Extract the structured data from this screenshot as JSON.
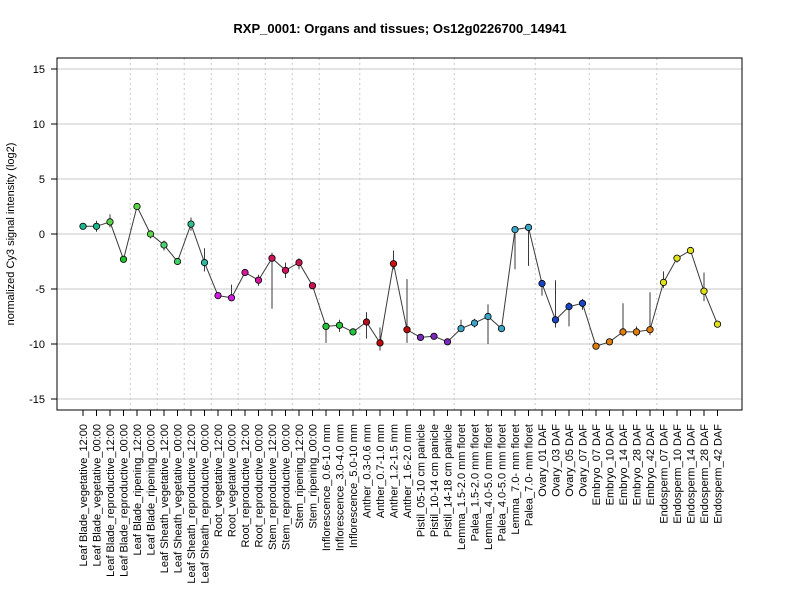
{
  "chart_data": {
    "type": "line",
    "title": "RXP_0001: Organs and tissues; Os12g0226700_14941",
    "xlabel": "",
    "ylabel": "normalized Cy3 signal intensity (log2)",
    "ylim": [
      -16,
      16
    ],
    "yticks": [
      -15,
      -10,
      -5,
      0,
      5,
      10,
      15
    ],
    "grid": {
      "horizontal": true,
      "vertical_group_separators": true
    },
    "categories": [
      "Leaf Blade_vegetative_12:00",
      "Leaf Blade_vegetative_00:00",
      "Leaf Blade_reproductive_12:00",
      "Leaf Blade_reproductive_00:00",
      "Leaf Blade_ripening_12:00",
      "Leaf Blade_ripening_00:00",
      "Leaf Sheath_vegetative_12:00",
      "Leaf Sheath_vegetative_00:00",
      "Leaf Sheath_reproductive_12:00",
      "Leaf Sheath_reproductive_00:00",
      "Root_vegetative_12:00",
      "Root_vegetative_00:00",
      "Root_reproductive_12:00",
      "Root_reproductive_00:00",
      "Stem_reproductive_12:00",
      "Stem_reproductive_00:00",
      "Stem_ripening_12:00",
      "Stem_ripening_00:00",
      "Inflorescence_0.6-1.0 mm",
      "Inflorescence_3.0-4.0 mm",
      "Inflorescence_5.0-10 mm",
      "Anther_0.3-0.6 mm",
      "Anther_0.7-1.0 mm",
      "Anther_1.2-1.5 mm",
      "Anther_1.6-2.0 mm",
      "Pistil_05-10 cm panicle",
      "Pistil_10-14 cm panicle",
      "Pistil_14-18 cm panicle",
      "Lemma_1.5-2.0 mm floret",
      "Palea_1.5-2.0 mm floret",
      "Lemma_4.0-5.0 mm floret",
      "Palea_4.0-5.0 mm floret",
      "Lemma_7.0- mm floret",
      "Palea_7.0- mm floret",
      "Ovary_01 DAF",
      "Ovary_03 DAF",
      "Ovary_05 DAF",
      "Ovary_07 DAF",
      "Embryo_07 DAF",
      "Embryo_10 DAF",
      "Embryo_14 DAF",
      "Embryo_28 DAF",
      "Embryo_42 DAF",
      "Endosperm_07 DAF",
      "Endosperm_10 DAF",
      "Endosperm_14 DAF",
      "Endosperm_28 DAF",
      "Endosperm_42 DAF"
    ],
    "values": [
      0.7,
      0.7,
      1.1,
      -2.3,
      2.5,
      0.0,
      -1.0,
      -2.5,
      0.9,
      -2.6,
      -5.6,
      -5.8,
      -3.5,
      -4.2,
      -2.2,
      -3.3,
      -2.6,
      -4.7,
      -8.4,
      -8.3,
      -8.9,
      -8.0,
      -9.9,
      -2.7,
      -8.7,
      -9.4,
      -9.3,
      -9.8,
      -8.6,
      -8.1,
      -7.5,
      -8.6,
      0.4,
      0.6,
      -4.5,
      -7.8,
      -6.6,
      -6.3,
      -10.2,
      -9.8,
      -8.9,
      -8.9,
      -8.7,
      -4.4,
      -2.2,
      -1.5,
      -5.2,
      -8.2
    ],
    "error_bars": [
      [
        0.7,
        0.7
      ],
      [
        0.2,
        1.2
      ],
      [
        0.6,
        1.8
      ],
      [
        -2.3,
        -2.3
      ],
      [
        2.5,
        2.5
      ],
      [
        -0.4,
        0.3
      ],
      [
        -1.5,
        -0.6
      ],
      [
        -2.5,
        -2.5
      ],
      [
        0.3,
        1.5
      ],
      [
        -3.4,
        -1.3
      ],
      [
        -5.9,
        -5.4
      ],
      [
        -6.0,
        -4.6
      ],
      [
        -3.5,
        -3.5
      ],
      [
        -4.7,
        -3.7
      ],
      [
        -6.8,
        -1.7
      ],
      [
        -4.0,
        -2.6
      ],
      [
        -3.2,
        -2.2
      ],
      [
        -4.7,
        -4.7
      ],
      [
        -9.9,
        -8.1
      ],
      [
        -8.9,
        -7.8
      ],
      [
        -9.1,
        -8.6
      ],
      [
        -9.5,
        -7.1
      ],
      [
        -10.6,
        -8.5
      ],
      [
        -3.2,
        -1.5
      ],
      [
        -9.9,
        -4.1
      ],
      [
        -9.6,
        -9.1
      ],
      [
        -9.5,
        -9.1
      ],
      [
        -9.9,
        -9.6
      ],
      [
        -8.9,
        -7.8
      ],
      [
        -8.5,
        -7.7
      ],
      [
        -10.0,
        -6.4
      ],
      [
        -8.8,
        -8.4
      ],
      [
        -3.2,
        0.7
      ],
      [
        -2.9,
        0.9
      ],
      [
        -5.6,
        -4.2
      ],
      [
        -8.5,
        -4.2
      ],
      [
        -8.4,
        -6.2
      ],
      [
        -6.9,
        -5.9
      ],
      [
        -10.3,
        -10.0
      ],
      [
        -10.0,
        -9.7
      ],
      [
        -9.3,
        -6.3
      ],
      [
        -9.3,
        -8.4
      ],
      [
        -9.2,
        -5.3
      ],
      [
        -4.9,
        -3.4
      ],
      [
        -2.6,
        -1.9
      ],
      [
        -1.8,
        -1.3
      ],
      [
        -6.1,
        -3.5
      ],
      [
        -8.4,
        -7.9
      ]
    ],
    "point_colors": [
      "#1fb58f",
      "#1fb58f",
      "#5cd44a",
      "#22c32f",
      "#5cd44a",
      "#5cd44a",
      "#4ccf72",
      "#3fcf63",
      "#2cbf8a",
      "#2cb8a1",
      "#d21be0",
      "#d21be0",
      "#d4189e",
      "#d4189e",
      "#d0145c",
      "#d0145c",
      "#c8144f",
      "#c8144f",
      "#26c33c",
      "#26c33c",
      "#26c33c",
      "#b5101d",
      "#c00a0a",
      "#cc1010",
      "#c00a0a",
      "#7a2ab8",
      "#7a2ab8",
      "#7a2ab8",
      "#3aa5c6",
      "#3aa5c6",
      "#3aa5c6",
      "#3aa5c6",
      "#3aa5c6",
      "#3aa5c6",
      "#1845c4",
      "#1845c4",
      "#1845c4",
      "#1845c4",
      "#e07d10",
      "#e07d10",
      "#e07d10",
      "#e07d10",
      "#e07d10",
      "#dfe21a",
      "#dfe21a",
      "#dfe21a",
      "#dfe21a",
      "#dfe21a"
    ],
    "group_separators_after_index": [
      3,
      5,
      7,
      9,
      11,
      13,
      15,
      17,
      20,
      24,
      27,
      33,
      37,
      42
    ],
    "colors": {
      "line": "#3a3a3a",
      "grid": "#c8c8c8",
      "separator": "#c8c8c8",
      "axis": "#000000"
    }
  }
}
